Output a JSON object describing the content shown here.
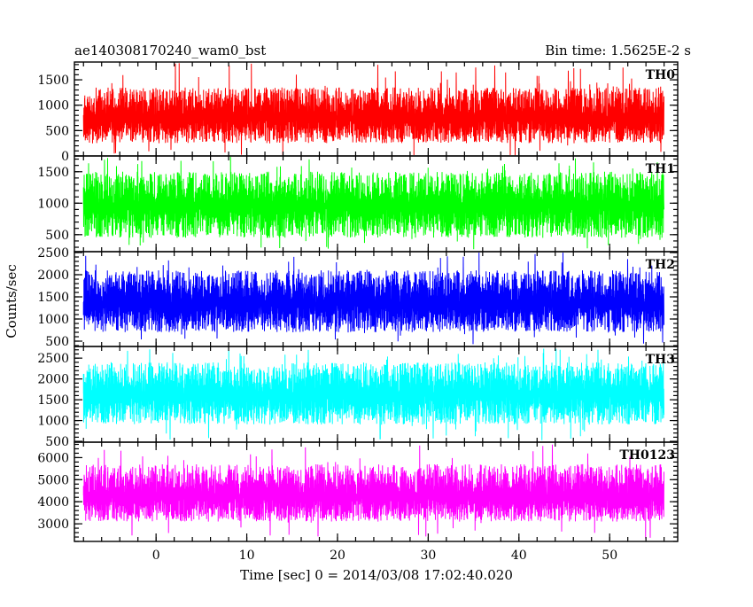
{
  "chart_data": {
    "type": "line",
    "title_left": "ae140308170240_wam0_bst",
    "title_right": "Bin time: 1.5625E-2 s",
    "xlabel": "Time [sec] 0 = 2014/03/08 17:02:40.020",
    "ylabel": "Counts/sec",
    "xlim": [
      -9,
      57.5
    ],
    "x_range_data": [
      -8,
      56
    ],
    "x_ticks": [
      0,
      10,
      20,
      30,
      40,
      50
    ],
    "x_tick_labels": [
      "0",
      "10",
      "20",
      "30",
      "40",
      "50"
    ],
    "x_minor_step": 2,
    "panels": [
      {
        "name": "TH0",
        "color": "#ff0000",
        "ylim": [
          0,
          1850
        ],
        "y_ticks": [
          0,
          500,
          1000,
          1500
        ],
        "y_tick_labels": [
          "0",
          "500",
          "1000",
          "1500"
        ],
        "y_minor_step": 100,
        "mean": 760,
        "band": [
          250,
          1350
        ],
        "extremes": [
          0,
          1830
        ],
        "seed": 11
      },
      {
        "name": "TH1",
        "color": "#00ff00",
        "ylim": [
          230,
          1750
        ],
        "y_ticks": [
          500,
          1000,
          1500
        ],
        "y_tick_labels": [
          "500",
          "1000",
          "1500"
        ],
        "y_minor_step": 100,
        "mean": 980,
        "band": [
          450,
          1500
        ],
        "extremes": [
          250,
          1740
        ],
        "seed": 23
      },
      {
        "name": "TH2",
        "color": "#0000ff",
        "ylim": [
          380,
          2520
        ],
        "y_ticks": [
          500,
          1000,
          1500,
          2000,
          2500
        ],
        "y_tick_labels": [
          "500",
          "1000",
          "1500",
          "2000",
          "2500"
        ],
        "y_minor_step": 100,
        "mean": 1380,
        "band": [
          700,
          2100
        ],
        "extremes": [
          420,
          2500
        ],
        "seed": 37
      },
      {
        "name": "TH3",
        "color": "#00ffff",
        "ylim": [
          480,
          2780
        ],
        "y_ticks": [
          500,
          1000,
          1500,
          2000,
          2500
        ],
        "y_tick_labels": [
          "500",
          "1000",
          "1500",
          "2000",
          "2500"
        ],
        "y_minor_step": 100,
        "mean": 1650,
        "band": [
          900,
          2400
        ],
        "extremes": [
          520,
          2760
        ],
        "seed": 53
      },
      {
        "name": "TH0123",
        "color": "#ff00ff",
        "ylim": [
          2200,
          6700
        ],
        "y_ticks": [
          3000,
          4000,
          5000,
          6000
        ],
        "y_tick_labels": [
          "3000",
          "4000",
          "5000",
          "6000"
        ],
        "y_minor_step": 200,
        "mean": 4300,
        "band": [
          3100,
          5700
        ],
        "extremes": [
          2300,
          6600
        ],
        "seed": 71
      }
    ],
    "grid": false,
    "legend": "none"
  }
}
